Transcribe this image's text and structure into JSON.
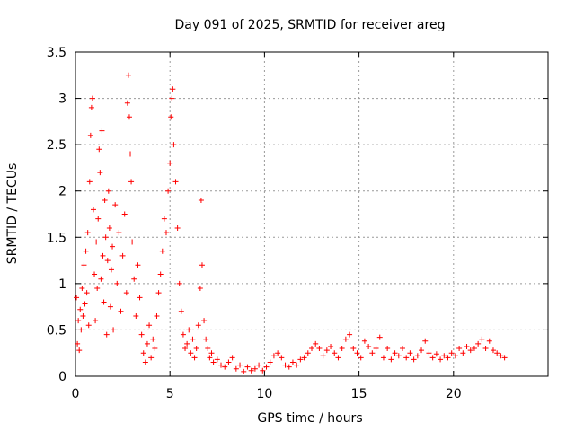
{
  "chart_data": {
    "type": "scatter",
    "title": "Day 091 of 2025, SRMTID for receiver areg",
    "xlabel": "GPS time / hours",
    "ylabel": "SRMTID / TECUs",
    "xlim": [
      0,
      25
    ],
    "ylim": [
      0,
      3.5
    ],
    "xticks": [
      "0",
      "5",
      "10",
      "15",
      "20"
    ],
    "yticks": [
      "0",
      "0.5",
      "1",
      "1.5",
      "2",
      "2.5",
      "3",
      "3.5"
    ],
    "grid": true,
    "marker": "+",
    "color": "#ff0000",
    "series": [
      {
        "name": "SRMTID",
        "points": [
          [
            0.05,
            0.85
          ],
          [
            0.1,
            0.35
          ],
          [
            0.15,
            0.6
          ],
          [
            0.2,
            0.28
          ],
          [
            0.25,
            0.72
          ],
          [
            0.3,
            0.5
          ],
          [
            0.35,
            0.95
          ],
          [
            0.4,
            0.65
          ],
          [
            0.45,
            1.2
          ],
          [
            0.5,
            0.78
          ],
          [
            0.55,
            1.35
          ],
          [
            0.6,
            0.9
          ],
          [
            0.65,
            1.55
          ],
          [
            0.7,
            0.55
          ],
          [
            0.75,
            2.1
          ],
          [
            0.8,
            2.6
          ],
          [
            0.85,
            2.9
          ],
          [
            0.9,
            3.0
          ],
          [
            0.95,
            1.8
          ],
          [
            1.0,
            1.1
          ],
          [
            1.05,
            0.6
          ],
          [
            1.1,
            1.45
          ],
          [
            1.15,
            0.95
          ],
          [
            1.2,
            1.7
          ],
          [
            1.25,
            2.45
          ],
          [
            1.3,
            2.2
          ],
          [
            1.35,
            1.05
          ],
          [
            1.4,
            2.65
          ],
          [
            1.45,
            1.3
          ],
          [
            1.5,
            0.8
          ],
          [
            1.55,
            1.9
          ],
          [
            1.6,
            1.5
          ],
          [
            1.65,
            0.45
          ],
          [
            1.7,
            1.25
          ],
          [
            1.75,
            2.0
          ],
          [
            1.8,
            1.6
          ],
          [
            1.85,
            0.75
          ],
          [
            1.9,
            1.15
          ],
          [
            1.95,
            1.4
          ],
          [
            2.0,
            0.5
          ],
          [
            2.1,
            1.85
          ],
          [
            2.2,
            1.0
          ],
          [
            2.3,
            1.55
          ],
          [
            2.4,
            0.7
          ],
          [
            2.5,
            1.3
          ],
          [
            2.6,
            1.75
          ],
          [
            2.7,
            0.9
          ],
          [
            2.75,
            2.95
          ],
          [
            2.8,
            3.25
          ],
          [
            2.85,
            2.8
          ],
          [
            2.9,
            2.4
          ],
          [
            2.95,
            2.1
          ],
          [
            3.0,
            1.45
          ],
          [
            3.1,
            1.05
          ],
          [
            3.2,
            0.65
          ],
          [
            3.3,
            1.2
          ],
          [
            3.4,
            0.85
          ],
          [
            3.5,
            0.45
          ],
          [
            3.6,
            0.25
          ],
          [
            3.7,
            0.15
          ],
          [
            3.8,
            0.35
          ],
          [
            3.9,
            0.55
          ],
          [
            4.0,
            0.2
          ],
          [
            4.1,
            0.4
          ],
          [
            4.2,
            0.3
          ],
          [
            4.3,
            0.65
          ],
          [
            4.4,
            0.9
          ],
          [
            4.5,
            1.1
          ],
          [
            4.6,
            1.35
          ],
          [
            4.7,
            1.7
          ],
          [
            4.8,
            1.55
          ],
          [
            4.9,
            2.0
          ],
          [
            5.0,
            2.3
          ],
          [
            5.05,
            2.8
          ],
          [
            5.1,
            3.0
          ],
          [
            5.15,
            3.1
          ],
          [
            5.2,
            2.5
          ],
          [
            5.3,
            2.1
          ],
          [
            5.4,
            1.6
          ],
          [
            5.5,
            1.0
          ],
          [
            5.6,
            0.7
          ],
          [
            5.7,
            0.45
          ],
          [
            5.8,
            0.3
          ],
          [
            5.9,
            0.35
          ],
          [
            6.0,
            0.5
          ],
          [
            6.1,
            0.25
          ],
          [
            6.2,
            0.4
          ],
          [
            6.3,
            0.2
          ],
          [
            6.4,
            0.3
          ],
          [
            6.5,
            0.55
          ],
          [
            6.6,
            0.95
          ],
          [
            6.65,
            1.9
          ],
          [
            6.7,
            1.2
          ],
          [
            6.8,
            0.6
          ],
          [
            6.9,
            0.4
          ],
          [
            7.0,
            0.3
          ],
          [
            7.1,
            0.2
          ],
          [
            7.2,
            0.25
          ],
          [
            7.3,
            0.15
          ],
          [
            7.5,
            0.18
          ],
          [
            7.7,
            0.12
          ],
          [
            7.9,
            0.1
          ],
          [
            8.1,
            0.15
          ],
          [
            8.3,
            0.2
          ],
          [
            8.5,
            0.08
          ],
          [
            8.7,
            0.12
          ],
          [
            8.9,
            0.05
          ],
          [
            9.1,
            0.1
          ],
          [
            9.3,
            0.06
          ],
          [
            9.5,
            0.08
          ],
          [
            9.7,
            0.12
          ],
          [
            9.9,
            0.06
          ],
          [
            10.1,
            0.1
          ],
          [
            10.3,
            0.15
          ],
          [
            10.5,
            0.22
          ],
          [
            10.7,
            0.25
          ],
          [
            10.9,
            0.2
          ],
          [
            11.1,
            0.12
          ],
          [
            11.3,
            0.1
          ],
          [
            11.5,
            0.15
          ],
          [
            11.7,
            0.12
          ],
          [
            11.9,
            0.18
          ],
          [
            12.1,
            0.2
          ],
          [
            12.3,
            0.25
          ],
          [
            12.5,
            0.3
          ],
          [
            12.7,
            0.35
          ],
          [
            12.9,
            0.3
          ],
          [
            13.1,
            0.22
          ],
          [
            13.3,
            0.28
          ],
          [
            13.5,
            0.32
          ],
          [
            13.7,
            0.25
          ],
          [
            13.9,
            0.2
          ],
          [
            14.1,
            0.3
          ],
          [
            14.3,
            0.4
          ],
          [
            14.5,
            0.45
          ],
          [
            14.7,
            0.3
          ],
          [
            14.9,
            0.25
          ],
          [
            15.1,
            0.2
          ],
          [
            15.3,
            0.38
          ],
          [
            15.5,
            0.32
          ],
          [
            15.7,
            0.25
          ],
          [
            15.9,
            0.3
          ],
          [
            16.1,
            0.42
          ],
          [
            16.3,
            0.2
          ],
          [
            16.5,
            0.3
          ],
          [
            16.7,
            0.18
          ],
          [
            16.9,
            0.25
          ],
          [
            17.1,
            0.22
          ],
          [
            17.3,
            0.3
          ],
          [
            17.5,
            0.2
          ],
          [
            17.7,
            0.25
          ],
          [
            17.9,
            0.18
          ],
          [
            18.1,
            0.22
          ],
          [
            18.3,
            0.28
          ],
          [
            18.5,
            0.38
          ],
          [
            18.7,
            0.25
          ],
          [
            18.9,
            0.2
          ],
          [
            19.1,
            0.24
          ],
          [
            19.3,
            0.18
          ],
          [
            19.5,
            0.22
          ],
          [
            19.7,
            0.2
          ],
          [
            19.9,
            0.25
          ],
          [
            20.1,
            0.22
          ],
          [
            20.3,
            0.3
          ],
          [
            20.5,
            0.25
          ],
          [
            20.7,
            0.32
          ],
          [
            20.9,
            0.28
          ],
          [
            21.1,
            0.3
          ],
          [
            21.3,
            0.35
          ],
          [
            21.5,
            0.4
          ],
          [
            21.7,
            0.3
          ],
          [
            21.9,
            0.38
          ],
          [
            22.1,
            0.28
          ],
          [
            22.3,
            0.25
          ],
          [
            22.5,
            0.22
          ],
          [
            22.7,
            0.2
          ]
        ]
      }
    ]
  }
}
